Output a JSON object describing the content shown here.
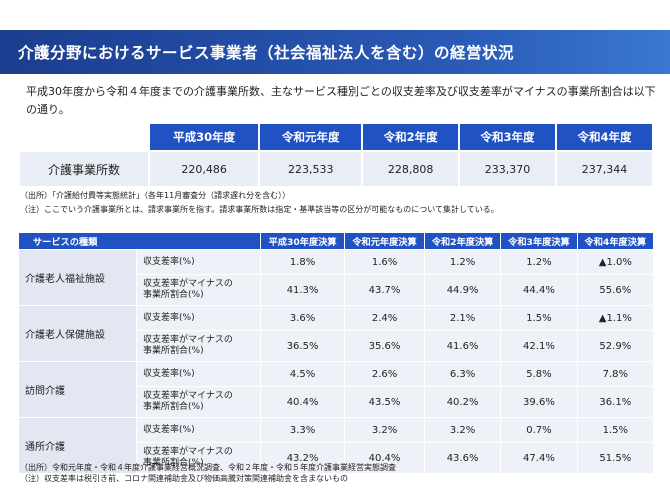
{
  "title": "介護分野におけるサービス事業者（社会福祉法人を含む）の経営状況",
  "intro": "平成30年度から令和４年度までの介護事業所数、主なサービス種別ごとの収支差率及び収支差率がマイナスの事業所割合は以下の通り。",
  "table1": {
    "headers": [
      "平成30年度",
      "令和元年度",
      "令和2年度",
      "令和3年度",
      "令和4年度"
    ],
    "row_label": "介護事業所数",
    "values": [
      "220,486",
      "223,533",
      "228,808",
      "233,370",
      "237,344"
    ]
  },
  "notes1": [
    "（出所）「介護給付費等実態統計」（各年11月審査分（請求遅れ分を含む））",
    "（注）ここでいう介護事業所とは、請求事業所を指す。請求事業所数は指定・基準該当等の区分が可能なものについて集計している。"
  ],
  "table2": {
    "header_label": "サービスの種類",
    "headers": [
      "平成30年度決算",
      "令和元年度決算",
      "令和2年度決算",
      "令和3年度決算",
      "令和4年度決算"
    ],
    "metric1": "収支差率(%)",
    "metric2_line1": "収支差率がマイナスの",
    "metric2_line2": "事業所割合(%)",
    "services": [
      {
        "name": "介護老人福祉施設",
        "margin": [
          "1.8%",
          "1.6%",
          "1.2%",
          "1.2%",
          "▲1.0%"
        ],
        "negative": [
          "41.3%",
          "43.7%",
          "44.9%",
          "44.4%",
          "55.6%"
        ]
      },
      {
        "name": "介護老人保健施設",
        "margin": [
          "3.6%",
          "2.4%",
          "2.1%",
          "1.5%",
          "▲1.1%"
        ],
        "negative": [
          "36.5%",
          "35.6%",
          "41.6%",
          "42.1%",
          "52.9%"
        ]
      },
      {
        "name": "訪問介護",
        "margin": [
          "4.5%",
          "2.6%",
          "6.3%",
          "5.8%",
          "7.8%"
        ],
        "negative": [
          "40.4%",
          "43.5%",
          "40.2%",
          "39.6%",
          "36.1%"
        ]
      },
      {
        "name": "通所介護",
        "margin": [
          "3.3%",
          "3.2%",
          "3.2%",
          "0.7%",
          "1.5%"
        ],
        "negative": [
          "43.2%",
          "40.4%",
          "43.6%",
          "47.4%",
          "51.5%"
        ]
      }
    ]
  },
  "notes2": [
    "（出所）令和元年度・令和４年度介護事業経営概況調査、令和２年度・令和５年度介護事業経営実態調査",
    "（注）収支差率は税引き前、コロナ関連補助金及び物価高騰対策関連補助金を含まないもの"
  ],
  "colors": {
    "header_blue": "#2152c4",
    "cell_bg": "#e9edf6"
  }
}
